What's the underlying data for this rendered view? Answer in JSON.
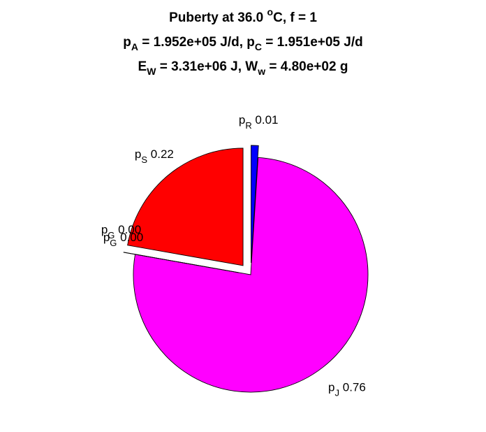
{
  "chart_data": {
    "type": "pie",
    "title_lines": [
      [
        {
          "t": "Puberty at 36.0 "
        },
        {
          "t": "o",
          "s": "sup"
        },
        {
          "t": "C, f = 1"
        }
      ],
      [
        {
          "t": "p"
        },
        {
          "t": "A",
          "s": "sub"
        },
        {
          "t": " = 1.952e+05 J/d,  p"
        },
        {
          "t": "C",
          "s": "sub"
        },
        {
          "t": " = 1.951e+05 J/d"
        }
      ],
      [
        {
          "t": "E"
        },
        {
          "t": "W",
          "s": "sub"
        },
        {
          "t": " = 3.31e+06 J, W"
        },
        {
          "t": "w",
          "s": "sub"
        },
        {
          "t": " = 4.80e+02 g"
        }
      ]
    ],
    "slices": [
      {
        "id": "pR",
        "sym": "p",
        "sub": "R",
        "value": 0.01,
        "value_text": "0.01",
        "color": "#0000ff",
        "exploded": true
      },
      {
        "id": "pJ",
        "sym": "p",
        "sub": "J",
        "value": 0.76,
        "value_text": "0.76",
        "color": "#ff00ff",
        "exploded": false
      },
      {
        "id": "pG",
        "sym": "p",
        "sub": "G",
        "value": 0.0,
        "value_text": "0.00",
        "color": "#00ff00",
        "exploded": true
      },
      {
        "id": "pG2",
        "sym": "p",
        "sub": "G",
        "value": 0.0,
        "value_text": "0.00",
        "color": "#00ffff",
        "exploded": true
      },
      {
        "id": "pS",
        "sym": "p",
        "sub": "S",
        "value": 0.22,
        "value_text": "0.22",
        "color": "#ff0000",
        "exploded": true
      }
    ]
  }
}
